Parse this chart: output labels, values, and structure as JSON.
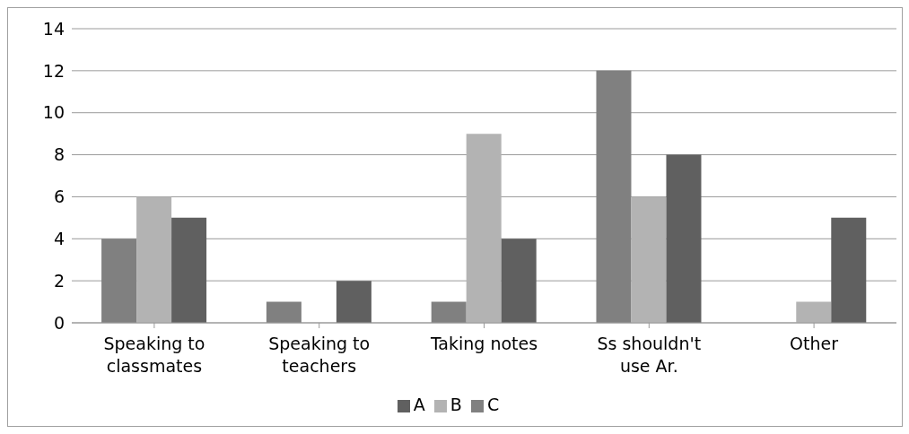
{
  "chart_data": {
    "type": "bar",
    "categories": [
      "Speaking to classmates",
      "Speaking to teachers",
      "Taking notes",
      "Ss shouldn't use Ar.",
      "Other"
    ],
    "series": [
      {
        "name": "A",
        "color": "#606060",
        "values": [
          5,
          2,
          4,
          8,
          5
        ]
      },
      {
        "name": "B",
        "color": "#b3b3b3",
        "values": [
          6,
          0,
          9,
          6,
          1
        ]
      },
      {
        "name": "C",
        "color": "#808080",
        "values": [
          4,
          1,
          1,
          12,
          0
        ]
      }
    ],
    "ylim": [
      0,
      14
    ],
    "yticks": [
      0,
      2,
      4,
      6,
      8,
      10,
      12,
      14
    ],
    "grid": "y",
    "legend": "bottom"
  }
}
